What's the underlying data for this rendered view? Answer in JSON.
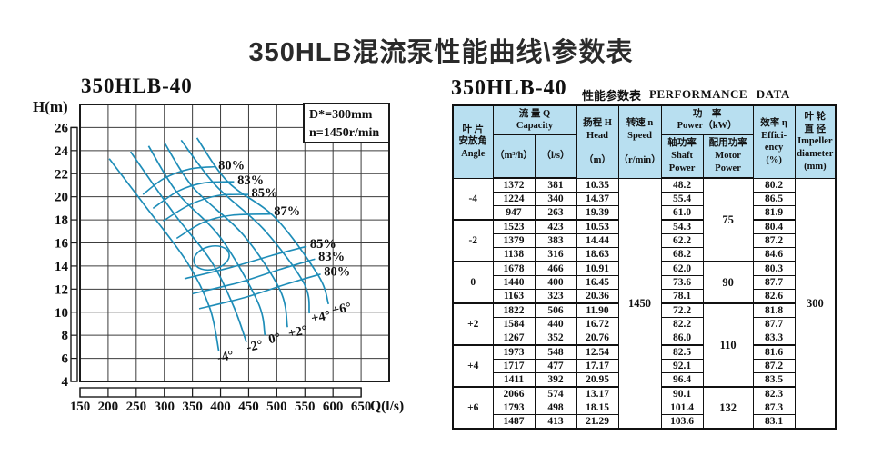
{
  "page_title": "350HLB混流泵性能曲线\\参数表",
  "chart_data": {
    "type": "line",
    "title": "350HLB-40",
    "xlabel": "Q(l/s)",
    "ylabel": "H(m)",
    "xlim": [
      150,
      700
    ],
    "ylim": [
      4,
      28
    ],
    "grid": true,
    "x_ticks": [
      150,
      200,
      250,
      300,
      350,
      400,
      450,
      500,
      550,
      600,
      650
    ],
    "y_ticks": [
      26,
      24,
      22,
      20,
      18,
      16,
      14,
      12,
      10,
      8,
      6,
      4
    ],
    "annotation": {
      "line1": "D*=300mm",
      "line2": "n=1450r/min"
    },
    "curve_color": "#1e8db8",
    "head_curves": [
      {
        "name": "-4°",
        "points": [
          [
            202,
            23.3
          ],
          [
            263,
            19.39
          ],
          [
            340,
            14.37
          ],
          [
            381,
            10.35
          ],
          [
            397,
            6.6
          ]
        ],
        "label": "-4°",
        "label_pos": [
          396,
          6.0
        ]
      },
      {
        "name": "-2°",
        "points": [
          [
            240,
            23.9
          ],
          [
            316,
            18.63
          ],
          [
            383,
            14.44
          ],
          [
            423,
            10.53
          ],
          [
            446,
            7.4
          ]
        ],
        "label": "-2°",
        "label_pos": [
          448,
          6.9
        ]
      },
      {
        "name": "0°",
        "points": [
          [
            272,
            24.4
          ],
          [
            323,
            20.36
          ],
          [
            400,
            16.45
          ],
          [
            466,
            10.91
          ],
          [
            479,
            8.0
          ]
        ],
        "label": "0°",
        "label_pos": [
          487,
          7.6
        ]
      },
      {
        "name": "+2°",
        "points": [
          [
            300,
            24.7
          ],
          [
            352,
            20.76
          ],
          [
            440,
            16.72
          ],
          [
            506,
            11.9
          ],
          [
            519,
            8.7
          ]
        ],
        "label": "+2°",
        "label_pos": [
          522,
          8.1
        ]
      },
      {
        "name": "+4°",
        "points": [
          [
            330,
            24.9
          ],
          [
            392,
            20.95
          ],
          [
            477,
            17.17
          ],
          [
            548,
            12.54
          ],
          [
            558,
            9.9
          ]
        ],
        "label": "+4°",
        "label_pos": [
          563,
          9.4
        ]
      },
      {
        "name": "+6°",
        "points": [
          [
            358,
            25.1
          ],
          [
            413,
            21.29
          ],
          [
            498,
            18.15
          ],
          [
            574,
            13.17
          ],
          [
            592,
            10.7
          ]
        ],
        "label": "+6°",
        "label_pos": [
          600,
          10.1
        ]
      }
    ],
    "efficiency_contours": [
      {
        "label": "80%",
        "points": [
          [
            262,
            20.2
          ],
          [
            300,
            21.6
          ],
          [
            345,
            22.4
          ],
          [
            390,
            22.6
          ]
        ],
        "label_pos": [
          396,
          22.7
        ]
      },
      {
        "label": "83%",
        "points": [
          [
            280,
            19.0
          ],
          [
            325,
            20.5
          ],
          [
            370,
            21.2
          ],
          [
            424,
            21.3
          ]
        ],
        "label_pos": [
          430,
          21.4
        ]
      },
      {
        "label": "85%",
        "points": [
          [
            298,
            17.9
          ],
          [
            345,
            19.3
          ],
          [
            395,
            20.1
          ],
          [
            450,
            20.2
          ]
        ],
        "label_pos": [
          455,
          20.3
        ]
      },
      {
        "label": "87%",
        "points": [
          [
            322,
            16.4
          ],
          [
            370,
            17.8
          ],
          [
            420,
            18.4
          ],
          [
            489,
            18.5
          ]
        ],
        "label_pos": [
          495,
          18.7
        ]
      },
      {
        "label": "85%",
        "points": [
          [
            336,
            12.9
          ],
          [
            420,
            13.9
          ],
          [
            490,
            14.9
          ],
          [
            553,
            15.7
          ]
        ],
        "label_pos": [
          559,
          15.9
        ]
      },
      {
        "label": "83%",
        "points": [
          [
            350,
            11.6
          ],
          [
            435,
            12.6
          ],
          [
            505,
            13.7
          ],
          [
            568,
            14.6
          ]
        ],
        "label_pos": [
          574,
          14.8
        ]
      },
      {
        "label": "80%",
        "points": [
          [
            362,
            10.3
          ],
          [
            445,
            11.3
          ],
          [
            515,
            12.4
          ],
          [
            578,
            13.3
          ]
        ],
        "label_pos": [
          584,
          13.5
        ]
      }
    ],
    "efficiency_island": {
      "center": [
        384,
        14.7
      ],
      "rx_q": 32,
      "ry_h": 1.0,
      "rotate_deg": -14
    }
  },
  "table": {
    "title": "350HLB-40",
    "subtitle_cn": "性能参数表",
    "subtitle_en": "PERFORMANCE  DATA",
    "header": {
      "angle": "叶 片\n安放角\nAngle",
      "capacity_group": "流 量 Q\nCapacity",
      "capacity_m3h": "（m³/h）",
      "capacity_ls": "（l/s）",
      "head": "扬程 H\nHead\n\n（m）",
      "speed": "转速 n\nSpeed\n\n（r/min）",
      "power_group": "功　率\nPower（kW）",
      "shaft": "轴功率\nShaft\nPower",
      "motor": "配用功率\nMotor\nPower",
      "efficiency": "效率 η\nEffici-\nency\n(%)",
      "impeller": "叶 轮\n直 径\nImpeller\ndiameter\n(mm)"
    },
    "speed_value": "1450",
    "impeller_value": "300",
    "groups": [
      {
        "angle": "-4",
        "rows": [
          [
            "1372",
            "381",
            "10.35",
            "48.2",
            "80.2"
          ],
          [
            "1224",
            "340",
            "14.37",
            "55.4",
            "86.5"
          ],
          [
            "947",
            "263",
            "19.39",
            "61.0",
            "81.9"
          ]
        ]
      },
      {
        "angle": "-2",
        "rows": [
          [
            "1523",
            "423",
            "10.53",
            "54.3",
            "80.4"
          ],
          [
            "1379",
            "383",
            "14.44",
            "62.2",
            "87.2"
          ],
          [
            "1138",
            "316",
            "18.63",
            "68.2",
            "84.6"
          ]
        ]
      },
      {
        "angle": "0",
        "rows": [
          [
            "1678",
            "466",
            "10.91",
            "62.0",
            "80.3"
          ],
          [
            "1440",
            "400",
            "16.45",
            "73.6",
            "87.7"
          ],
          [
            "1163",
            "323",
            "20.36",
            "78.1",
            "82.6"
          ]
        ]
      },
      {
        "angle": "+2",
        "rows": [
          [
            "1822",
            "506",
            "11.90",
            "72.2",
            "81.8"
          ],
          [
            "1584",
            "440",
            "16.72",
            "82.2",
            "87.7"
          ],
          [
            "1267",
            "352",
            "20.76",
            "86.0",
            "83.3"
          ]
        ]
      },
      {
        "angle": "+4",
        "rows": [
          [
            "1973",
            "548",
            "12.54",
            "82.5",
            "81.6"
          ],
          [
            "1717",
            "477",
            "17.17",
            "92.1",
            "87.2"
          ],
          [
            "1411",
            "392",
            "20.95",
            "96.4",
            "83.5"
          ]
        ]
      },
      {
        "angle": "+6",
        "rows": [
          [
            "2066",
            "574",
            "13.17",
            "90.1",
            "82.3"
          ],
          [
            "1793",
            "498",
            "18.15",
            "101.4",
            "87.3"
          ],
          [
            "1487",
            "413",
            "21.29",
            "103.6",
            "83.1"
          ]
        ]
      }
    ],
    "motor_powers": [
      {
        "value": "75",
        "row": 0,
        "span": 6
      },
      {
        "value": "90",
        "row": 6,
        "span": 3
      },
      {
        "value": "110",
        "row": 9,
        "span": 6
      },
      {
        "value": "132",
        "row": 15,
        "span": 3
      }
    ]
  }
}
